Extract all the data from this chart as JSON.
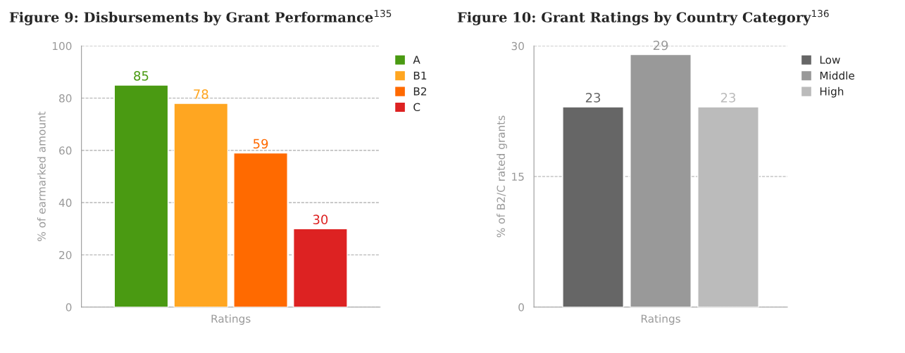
{
  "chart_data": [
    {
      "type": "bar",
      "title": "Figure 9: Disbursements by Grant Performance$^{135}$",
      "xlabel": "Ratings",
      "ylabel": "% of earmarked amount",
      "categories": [
        null
      ],
      "series": [
        {
          "name": "A",
          "color": "#4a9a12",
          "values": [
            85
          ]
        },
        {
          "name": "B1",
          "color": "#ffa621",
          "values": [
            78
          ]
        },
        {
          "name": "B2",
          "color": "#ff6a00",
          "values": [
            59
          ]
        },
        {
          "name": "C",
          "color": "#dd2222",
          "values": [
            30
          ]
        }
      ],
      "ylim": [
        0,
        100
      ],
      "yticks": [
        0,
        20,
        40,
        60,
        80,
        100
      ],
      "grid": "y",
      "legend": "top right",
      "data_labels": true
    },
    {
      "type": "bar",
      "title": "Figure 10: Grant Ratings by Country Category$^{136}$",
      "xlabel": "Ratings",
      "ylabel": "% of B2/C rated grants",
      "categories": [
        null
      ],
      "series": [
        {
          "name": "Low",
          "color": "#666666",
          "values": [
            23
          ]
        },
        {
          "name": "Middle",
          "color": "#999999",
          "values": [
            29
          ]
        },
        {
          "name": "High",
          "color": "#bbbbbb",
          "values": [
            23
          ]
        }
      ],
      "ylim": [
        0,
        30
      ],
      "yticks": [
        0,
        15,
        30
      ],
      "grid": "y",
      "legend": "top right",
      "data_labels": true
    }
  ]
}
